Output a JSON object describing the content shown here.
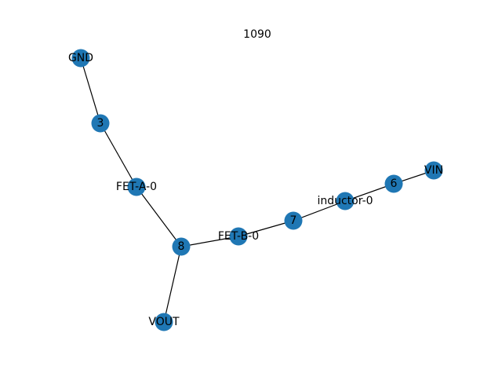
{
  "title": "1090",
  "colors": {
    "node": "#1f77b4",
    "edge": "#000000",
    "label": "#000000",
    "background": "#ffffff"
  },
  "nodes": [
    {
      "id": "GND",
      "label": "GND"
    },
    {
      "id": "3",
      "label": "3"
    },
    {
      "id": "FET-A-0",
      "label": "FET-A-0"
    },
    {
      "id": "8",
      "label": "8"
    },
    {
      "id": "VOUT",
      "label": "VOUT"
    },
    {
      "id": "FET-B-0",
      "label": "FET-B-0"
    },
    {
      "id": "7",
      "label": "7"
    },
    {
      "id": "inductor-0",
      "label": "inductor-0"
    },
    {
      "id": "6",
      "label": "6"
    },
    {
      "id": "VIN",
      "label": "VIN"
    }
  ],
  "edges": [
    [
      "GND",
      "3"
    ],
    [
      "3",
      "FET-A-0"
    ],
    [
      "FET-A-0",
      "8"
    ],
    [
      "8",
      "VOUT"
    ],
    [
      "8",
      "FET-B-0"
    ],
    [
      "FET-B-0",
      "7"
    ],
    [
      "7",
      "inductor-0"
    ],
    [
      "inductor-0",
      "6"
    ],
    [
      "6",
      "VIN"
    ]
  ]
}
